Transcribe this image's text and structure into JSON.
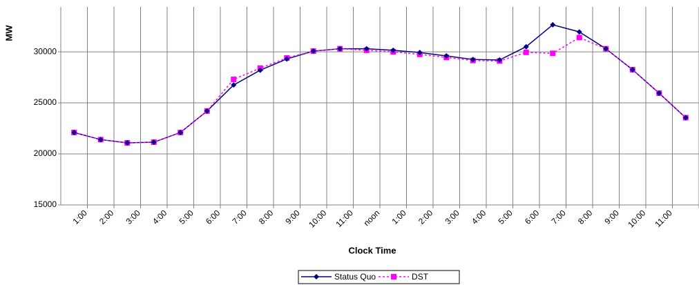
{
  "chart_data": {
    "type": "line",
    "y_label": "MW",
    "x_label": "Clock Time",
    "categories": [
      "1:00",
      "2:00",
      "3:00",
      "4:00",
      "5:00",
      "6:00",
      "7:00",
      "8:00",
      "9:00",
      "10:00",
      "11:00",
      "noon",
      "1:00",
      "2:00",
      "3:00",
      "4:00",
      "5:00",
      "6:00",
      "7:00",
      "8:00",
      "9:00",
      "10:00",
      "11:00",
      null
    ],
    "series": [
      {
        "name": "Status Quo",
        "color": "#000080",
        "marker": "diamond",
        "dashed": false,
        "values": [
          22100,
          21400,
          21080,
          21150,
          22100,
          24200,
          26750,
          28200,
          29300,
          30070,
          30300,
          30300,
          30150,
          29930,
          29600,
          29250,
          29200,
          30500,
          32650,
          31950,
          30300,
          28250,
          25950,
          23550
        ]
      },
      {
        "name": "DST",
        "color": "#ff00ff",
        "marker": "square",
        "dashed": true,
        "values": [
          22100,
          21400,
          21080,
          21150,
          22100,
          24200,
          27300,
          28400,
          29400,
          30070,
          30300,
          30150,
          30000,
          29750,
          29450,
          29150,
          29100,
          29950,
          29850,
          31400,
          30300,
          28250,
          25950,
          23550
        ]
      }
    ],
    "ylim": [
      15000,
      34400
    ],
    "yticks": [
      15000,
      20000,
      25000,
      30000
    ],
    "grid": true
  }
}
